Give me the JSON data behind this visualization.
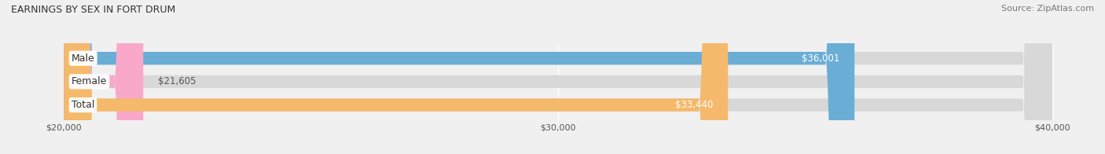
{
  "title": "EARNINGS BY SEX IN FORT DRUM",
  "source": "Source: ZipAtlas.com",
  "categories": [
    "Male",
    "Female",
    "Total"
  ],
  "values": [
    36001,
    21605,
    33440
  ],
  "bar_colors": [
    "#6aaed6",
    "#f9a8c9",
    "#f5b96b"
  ],
  "value_labels": [
    "$36,001",
    "$21,605",
    "$33,440"
  ],
  "xmin": 20000,
  "xmax": 40000,
  "xticks": [
    20000,
    30000,
    40000
  ],
  "xtick_labels": [
    "$20,000",
    "$30,000",
    "$40,000"
  ],
  "bar_height": 0.55,
  "background_color": "#f0f0f0",
  "bar_bg_color": "#d8d8d8",
  "title_fontsize": 9,
  "source_fontsize": 8,
  "label_fontsize": 9,
  "value_fontsize": 8.5
}
